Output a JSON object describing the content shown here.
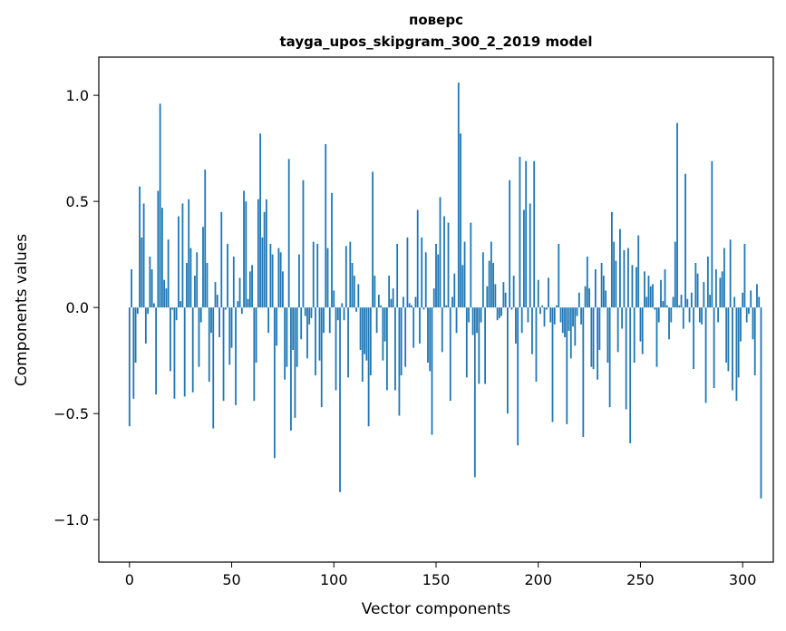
{
  "chart_data": {
    "type": "bar",
    "title": "поверс",
    "subtitle": "tayga_upos_skipgram_300_2_2019 model",
    "xlabel": "Vector components",
    "ylabel": "Components values",
    "xlim": [
      -15,
      315
    ],
    "ylim": [
      -1.2,
      1.18
    ],
    "xticks": [
      0,
      50,
      100,
      150,
      200,
      250,
      300
    ],
    "xtick_labels": [
      "0",
      "50",
      "100",
      "150",
      "200",
      "250",
      "300"
    ],
    "yticks": [
      -1.0,
      -0.5,
      0.0,
      0.5,
      1.0
    ],
    "ytick_labels": [
      "−1.0",
      "−0.5",
      "0.0",
      "0.5",
      "1.0"
    ],
    "grid": false,
    "bar_color": "#1f77b4",
    "values": [
      -0.56,
      0.18,
      -0.43,
      -0.26,
      -0.03,
      0.57,
      0.33,
      0.49,
      -0.17,
      -0.03,
      0.24,
      0.18,
      0.02,
      -0.41,
      0.55,
      0.96,
      0.47,
      0.13,
      0.09,
      0.32,
      -0.3,
      -0.01,
      -0.43,
      -0.06,
      0.43,
      0.03,
      0.49,
      -0.42,
      0.21,
      0.51,
      0.28,
      -0.4,
      0.15,
      0.26,
      -0.28,
      -0.07,
      0.38,
      0.65,
      0.21,
      -0.35,
      -0.12,
      -0.57,
      0.12,
      0.06,
      -0.14,
      0.45,
      -0.44,
      -0.01,
      0.3,
      -0.27,
      -0.19,
      0.24,
      -0.46,
      0.03,
      0.14,
      -0.03,
      0.55,
      0.5,
      0.04,
      0.17,
      0.2,
      -0.44,
      -0.26,
      0.51,
      0.82,
      0.33,
      0.45,
      0.51,
      -0.12,
      0.3,
      0.25,
      -0.71,
      -0.18,
      0.28,
      0.26,
      0.17,
      -0.34,
      -0.28,
      0.7,
      -0.58,
      -0.2,
      -0.52,
      -0.28,
      0.25,
      -0.15,
      0.6,
      -0.04,
      -0.24,
      -0.08,
      -0.05,
      0.31,
      -0.32,
      0.3,
      -0.25,
      -0.47,
      -0.12,
      0.77,
      0.28,
      -0.12,
      0.54,
      0.08,
      -0.39,
      -0.06,
      -0.87,
      0.02,
      -0.06,
      0.29,
      -0.33,
      0.31,
      0.21,
      0.15,
      -0.02,
      0.11,
      -0.2,
      -0.35,
      -0.22,
      -0.25,
      -0.56,
      -0.32,
      0.64,
      0.15,
      -0.12,
      0.06,
      0.01,
      -0.25,
      -0.16,
      -0.39,
      0.15,
      0.04,
      0.09,
      -0.39,
      0.3,
      -0.51,
      -0.32,
      0.05,
      -0.28,
      0.33,
      0.02,
      0.01,
      -0.19,
      0.05,
      0.46,
      -0.17,
      0.33,
      -0.01,
      0.26,
      -0.26,
      -0.3,
      -0.6,
      0.09,
      0.3,
      0.25,
      0.52,
      -0.21,
      0.43,
      0.01,
      0.4,
      -0.44,
      0.05,
      0.16,
      -0.12,
      1.06,
      0.82,
      0.2,
      0.31,
      -0.33,
      -0.07,
      0.4,
      -0.13,
      -0.8,
      -0.12,
      -0.36,
      -0.07,
      0.26,
      -0.36,
      0.1,
      0.22,
      0.31,
      0.21,
      0.11,
      -0.06,
      -0.05,
      -0.04,
      0.12,
      0.07,
      -0.5,
      0.6,
      -0.01,
      0.15,
      -0.17,
      -0.65,
      0.71,
      -0.12,
      0.46,
      0.69,
      -0.07,
      0.49,
      -0.22,
      0.69,
      -0.35,
      0.13,
      -0.03,
      0.01,
      -0.09,
      -0.01,
      0.14,
      -0.07,
      -0.54,
      -0.08,
      0.01,
      0.3,
      -0.07,
      -0.12,
      -0.14,
      -0.55,
      -0.11,
      -0.24,
      -0.09,
      -0.18,
      -0.04,
      0.07,
      -0.08,
      -0.61,
      0.1,
      0.24,
      0.09,
      -0.28,
      -0.29,
      0.18,
      -0.34,
      -0.2,
      0.21,
      0.15,
      0.08,
      -0.26,
      -0.47,
      0.45,
      0.31,
      0.22,
      -0.21,
      0.37,
      -0.1,
      0.27,
      -0.48,
      0.28,
      -0.64,
      0.2,
      -0.26,
      0.19,
      0.34,
      -0.16,
      -0.22,
      0.17,
      0.05,
      0.15,
      0.1,
      0.11,
      -0.01,
      -0.28,
      -0.07,
      0.13,
      0.03,
      0.18,
      0.01,
      -0.15,
      -0.07,
      0.05,
      0.31,
      0.87,
      0.01,
      0.06,
      -0.1,
      0.63,
      0.04,
      -0.07,
      0.07,
      -0.29,
      0.21,
      0.16,
      -0.07,
      -0.08,
      0.12,
      -0.45,
      0.24,
      0.06,
      0.69,
      -0.38,
      0.18,
      -0.07,
      0.14,
      0.17,
      0.28,
      -0.26,
      -0.3,
      0.32,
      -0.39,
      0.05,
      -0.44,
      -0.33,
      -0.16,
      0.07,
      0.3,
      -0.07,
      -0.03,
      0.08,
      -0.15,
      -0.32,
      0.11,
      0.05,
      -0.9
    ]
  }
}
